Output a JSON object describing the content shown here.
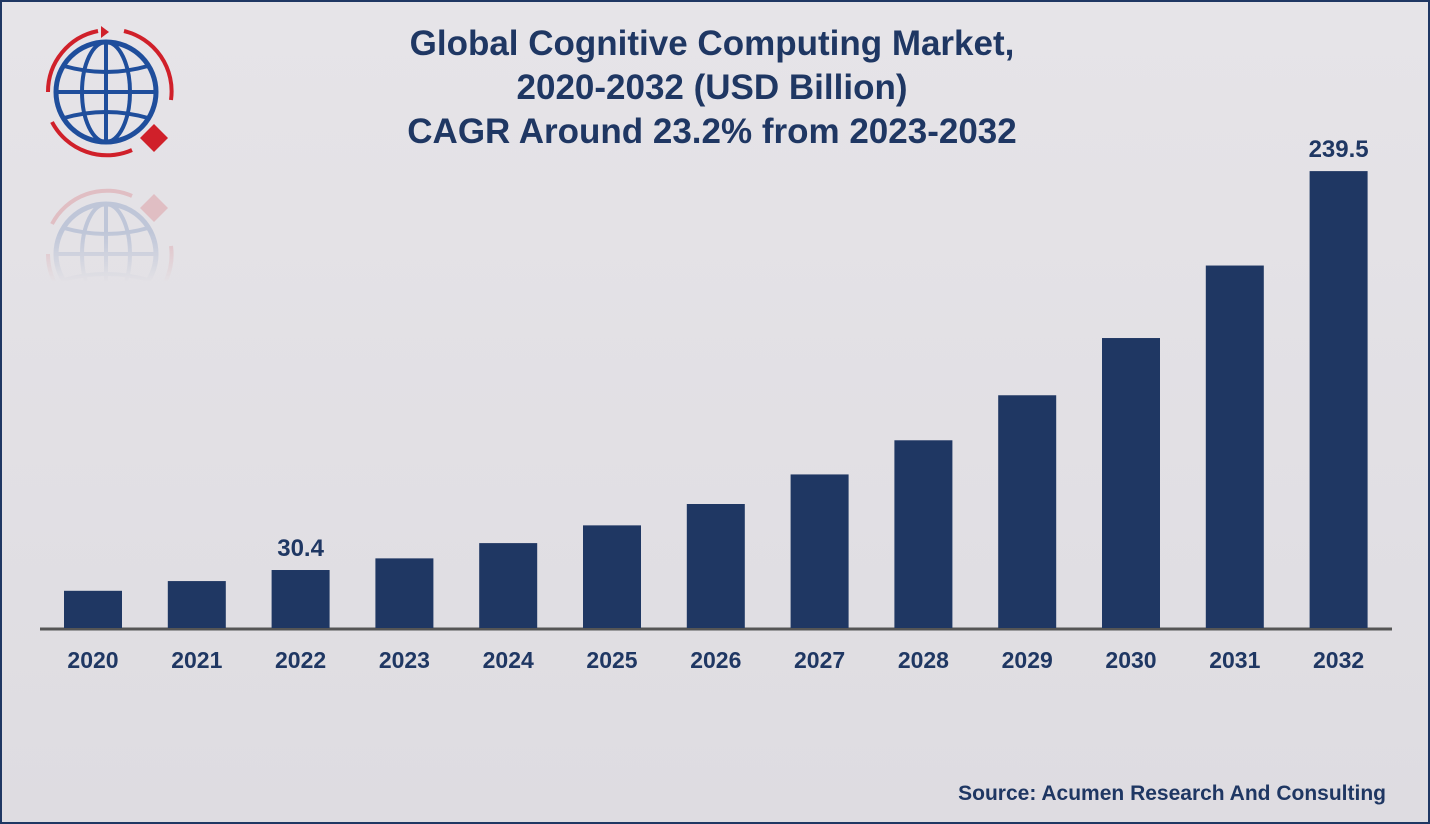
{
  "colors": {
    "bar": "#1f3763",
    "text": "#1f3763",
    "axis": "#555555",
    "logo_blue": "#1f4e9c",
    "logo_red": "#d0202a"
  },
  "logo": {
    "icon": "globe-icon"
  },
  "source": "Source: Acumen Research And Consulting",
  "chart_data": {
    "type": "bar",
    "title": "Global Cognitive Computing Market,",
    "subtitle": "2020-2032 (USD Billion)",
    "subtitle2": "CAGR Around 23.2% from 2023-2032",
    "xlabel": "",
    "ylabel": "",
    "categories": [
      "2020",
      "2021",
      "2022",
      "2023",
      "2024",
      "2025",
      "2026",
      "2027",
      "2028",
      "2029",
      "2030",
      "2031",
      "2032"
    ],
    "values": [
      19.5,
      24.6,
      30.4,
      36.5,
      44.5,
      53.8,
      65.0,
      80.5,
      98.4,
      122.0,
      152.0,
      190.0,
      239.5
    ],
    "data_labels": [
      {
        "category": "2022",
        "text": "30.4"
      },
      {
        "category": "2032",
        "text": "239.5"
      }
    ],
    "ylim": [
      0,
      260
    ],
    "grid": false,
    "legend": "none"
  }
}
